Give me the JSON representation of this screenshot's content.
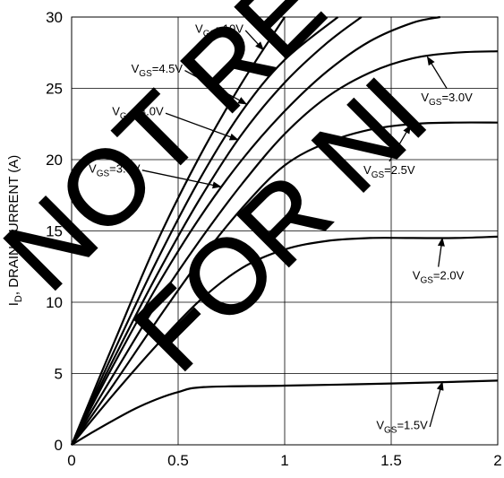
{
  "chart_data": {
    "type": "line",
    "ylabel": "I_D, DRAIN CURRENT (A)",
    "xlim": [
      0,
      2
    ],
    "ylim": [
      0,
      30
    ],
    "x_ticks": [
      "0",
      "0.5",
      "1",
      "1.5",
      "2"
    ],
    "y_ticks": [
      "0",
      "5",
      "10",
      "15",
      "20",
      "25",
      "30"
    ],
    "grid": true,
    "series": [
      {
        "name": "VGS=10V",
        "x": [
          0,
          0.2,
          0.4,
          0.6,
          0.8,
          1.0
        ],
        "y": [
          0,
          7.2,
          14.2,
          20.2,
          25.4,
          30
        ]
      },
      {
        "name": "VGS=4.5V",
        "x": [
          0,
          0.2,
          0.4,
          0.6,
          0.8,
          1.0,
          1.25
        ],
        "y": [
          0,
          6.6,
          12.9,
          18.6,
          23.4,
          27.0,
          30
        ]
      },
      {
        "name": "VGS=4.0V",
        "x": [
          0,
          0.2,
          0.4,
          0.6,
          0.8,
          1.0,
          1.2,
          1.36
        ],
        "y": [
          0,
          6.1,
          11.9,
          17.2,
          21.8,
          25.4,
          28.2,
          30
        ]
      },
      {
        "name": "VGS=3.5V",
        "x": [
          0,
          0.2,
          0.4,
          0.6,
          0.8,
          1.0,
          1.2,
          1.4,
          1.6,
          1.73
        ],
        "y": [
          0,
          5.7,
          11.1,
          15.9,
          20.0,
          23.4,
          26.2,
          28.3,
          29.6,
          30
        ]
      },
      {
        "name": "VGS=3.0V",
        "x": [
          0,
          0.2,
          0.4,
          0.6,
          0.8,
          1.0,
          1.2,
          1.4,
          1.6,
          1.8,
          2.0
        ],
        "y": [
          0,
          5.0,
          9.9,
          14.3,
          18.3,
          21.8,
          24.4,
          26.1,
          27.1,
          27.5,
          27.6
        ]
      },
      {
        "name": "VGS=2.5V",
        "x": [
          0,
          0.2,
          0.4,
          0.6,
          0.8,
          1.0,
          1.2,
          1.4,
          1.6,
          1.8,
          2.0
        ],
        "y": [
          0,
          4.3,
          8.7,
          12.9,
          16.6,
          19.6,
          21.2,
          22.1,
          22.5,
          22.6,
          22.6
        ]
      },
      {
        "name": "VGS=2.0V",
        "x": [
          0,
          0.2,
          0.4,
          0.6,
          0.8,
          1.0,
          1.2,
          1.4,
          1.6,
          1.8,
          2.0
        ],
        "y": [
          0,
          3.6,
          7.0,
          10.1,
          12.4,
          13.7,
          14.3,
          14.5,
          14.5,
          14.5,
          14.6
        ]
      },
      {
        "name": "VGS=1.5V",
        "x": [
          0,
          0.1,
          0.2,
          0.3,
          0.4,
          0.5,
          0.62,
          1.0,
          1.5,
          2.0
        ],
        "y": [
          0,
          0.9,
          1.75,
          2.55,
          3.2,
          3.7,
          4.05,
          4.15,
          4.3,
          4.5
        ]
      }
    ],
    "annotations": [
      {
        "sub": "GS",
        "rest": "=10V",
        "x": 0.58,
        "y": 28.9,
        "ax": 0.9,
        "ay": 27.7
      },
      {
        "sub": "GS",
        "rest": "=4.5V",
        "x": 0.28,
        "y": 26.1,
        "ax": 0.82,
        "ay": 23.9
      },
      {
        "sub": "GS",
        "rest": "=4.0V",
        "x": 0.19,
        "y": 23.1,
        "ax": 0.78,
        "ay": 21.4
      },
      {
        "sub": "GS",
        "rest": "=3.5V",
        "x": 0.08,
        "y": 19.1,
        "ax": 0.7,
        "ay": 18.1
      },
      {
        "sub": "GS",
        "rest": "=3.0V",
        "x": 1.64,
        "y": 24.1,
        "ax": 1.67,
        "ay": 27.2
      },
      {
        "sub": "GS",
        "rest": "=2.5V",
        "x": 1.37,
        "y": 19.0,
        "ax": 1.59,
        "ay": 22.4
      },
      {
        "sub": "GS",
        "rest": "=2.0V",
        "x": 1.6,
        "y": 11.6,
        "ax": 1.74,
        "ay": 14.5
      },
      {
        "sub": "GS",
        "rest": "=1.5V",
        "x": 1.43,
        "y": 1.1,
        "ax": 1.74,
        "ay": 4.4
      }
    ],
    "watermark": [
      "NOT RE",
      "FOR NI"
    ]
  }
}
